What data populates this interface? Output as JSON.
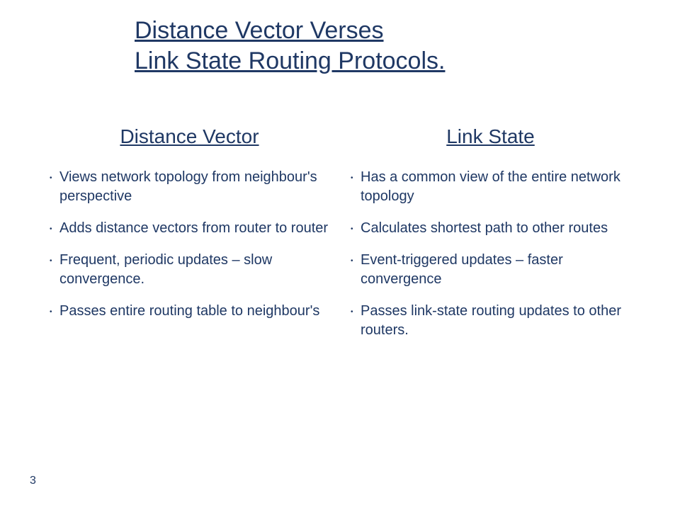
{
  "colors": {
    "text": "#1f3864",
    "background": "#ffffff"
  },
  "typography": {
    "title_fontsize": 34,
    "col_title_fontsize": 28,
    "body_fontsize": 20,
    "pagenum_fontsize": 16,
    "font_family": "Arial"
  },
  "title": {
    "line1": "Distance Vector Verses",
    "line2": "Link State Routing Protocols."
  },
  "left": {
    "heading": "Distance Vector",
    "items": [
      "Views network topology from neighbour's perspective",
      "Adds distance vectors from router to router",
      "Frequent, periodic updates – slow convergence.",
      "Passes entire routing table to neighbour's"
    ]
  },
  "right": {
    "heading": "Link State",
    "items": [
      "Has a common view of the entire network topology",
      "Calculates shortest path to other routes",
      "Event-triggered updates – faster convergence",
      "Passes link-state routing updates to other routers."
    ]
  },
  "page_number": "3"
}
